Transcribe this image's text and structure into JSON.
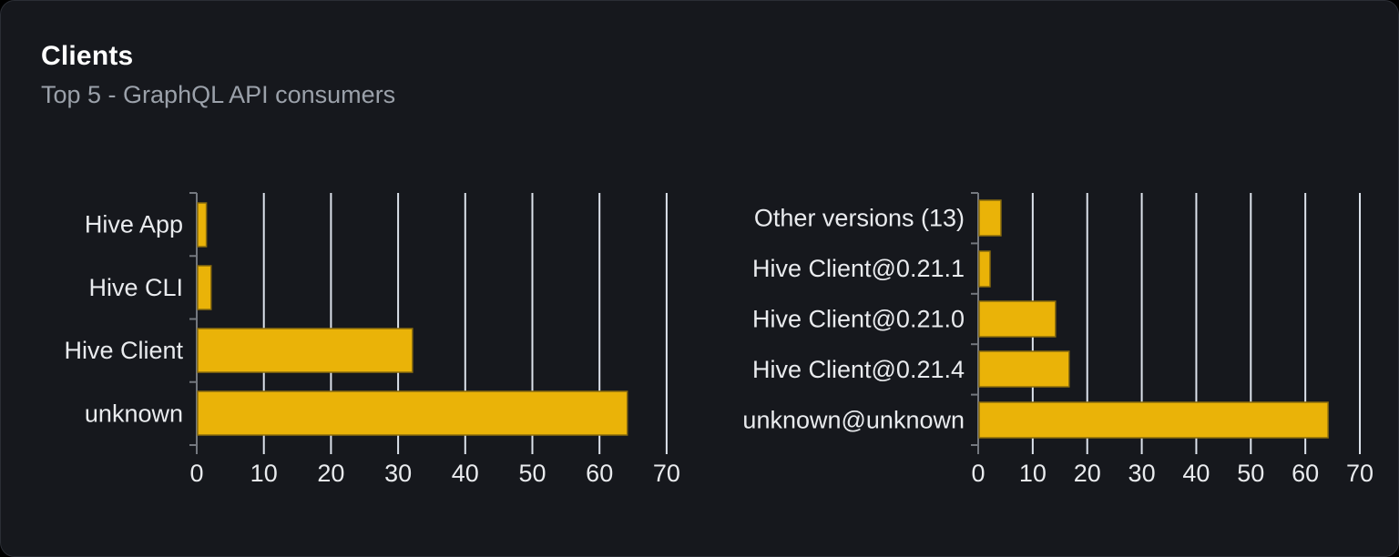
{
  "card": {
    "title": "Clients",
    "subtitle": "Top 5 - GraphQL API consumers"
  },
  "chart_data": [
    {
      "type": "bar",
      "orientation": "horizontal",
      "name": "clients-by-name",
      "categories": [
        "Hive App",
        "Hive CLI",
        "Hive Client",
        "unknown"
      ],
      "values": [
        1.3,
        2,
        32,
        64
      ],
      "xlim": [
        0,
        70
      ],
      "xticks": [
        0,
        10,
        20,
        30,
        40,
        50,
        60,
        70
      ],
      "grid": true,
      "legend": "none",
      "bar_color": "#eab308"
    },
    {
      "type": "bar",
      "orientation": "horizontal",
      "name": "clients-by-version",
      "categories": [
        "Other versions (13)",
        "Hive Client@0.21.1",
        "Hive Client@0.21.0",
        "Hive Client@0.21.4",
        "unknown@unknown"
      ],
      "values": [
        4,
        2,
        14,
        16.5,
        64
      ],
      "xlim": [
        0,
        70
      ],
      "xticks": [
        0,
        10,
        20,
        30,
        40,
        50,
        60,
        70
      ],
      "grid": true,
      "legend": "none",
      "bar_color": "#eab308"
    }
  ],
  "colors": {
    "bar": "#eab308",
    "bar_edge": "#8a6c0e",
    "card_background": "#16181d",
    "card_border": "#2b2e35",
    "page_background": "#000000",
    "title": "#ffffff",
    "subtitle": "#9ba1aa",
    "axis_line": "#74787f",
    "gridline": "#dde3ec",
    "label": "#e9ebee"
  }
}
